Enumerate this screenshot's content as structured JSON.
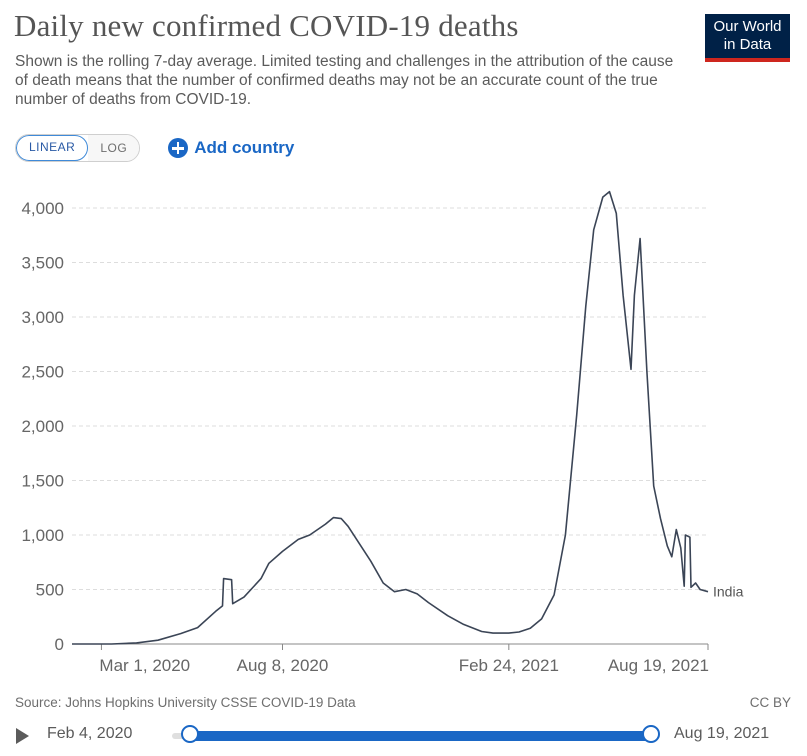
{
  "header": {
    "title": "Daily new confirmed COVID-19 deaths",
    "subtitle": "Shown is the rolling 7-day average. Limited testing and challenges in the attribution of the cause of death means that the number of confirmed deaths may not be an accurate count of the true number of deaths from COVID-19."
  },
  "logo": {
    "line1": "Our World",
    "line2": "in Data"
  },
  "controls": {
    "linear_label": "LINEAR",
    "log_label": "LOG",
    "add_country_label": "Add country",
    "add_icon": "plus-circle-icon"
  },
  "colors": {
    "line": "#3b4556",
    "grid": "#dddddd",
    "accent": "#1a67c5",
    "logo_bg": "#002147",
    "logo_bar": "#ce261e"
  },
  "chart_data": {
    "type": "line",
    "title": "Daily new confirmed COVID-19 deaths",
    "ylim": [
      0,
      4000
    ],
    "yticks": [
      0,
      500,
      1000,
      1500,
      2000,
      2500,
      3000,
      3500,
      4000
    ],
    "ytick_labels": [
      "0",
      "500",
      "1,000",
      "1,500",
      "2,000",
      "2,500",
      "3,000",
      "3,500",
      "4,000"
    ],
    "xlim": [
      "2020-02-04",
      "2021-08-19"
    ],
    "xticks": [
      "2020-03-01",
      "2020-08-08",
      "2021-02-24",
      "2021-08-19"
    ],
    "xtick_labels": [
      "Mar 1, 2020",
      "Aug 8, 2020",
      "Feb 24, 2021",
      "Aug 19, 2021"
    ],
    "grid": true,
    "series": [
      {
        "name": "India",
        "points": [
          [
            "2020-02-04",
            0
          ],
          [
            "2020-03-10",
            0
          ],
          [
            "2020-04-01",
            10
          ],
          [
            "2020-04-20",
            35
          ],
          [
            "2020-05-10",
            95
          ],
          [
            "2020-05-25",
            150
          ],
          [
            "2020-06-10",
            300
          ],
          [
            "2020-06-16",
            350
          ],
          [
            "2020-06-17",
            600
          ],
          [
            "2020-06-24",
            590
          ],
          [
            "2020-06-25",
            370
          ],
          [
            "2020-07-05",
            430
          ],
          [
            "2020-07-20",
            600
          ],
          [
            "2020-07-27",
            740
          ],
          [
            "2020-08-08",
            850
          ],
          [
            "2020-08-22",
            960
          ],
          [
            "2020-09-01",
            1000
          ],
          [
            "2020-09-15",
            1100
          ],
          [
            "2020-09-22",
            1160
          ],
          [
            "2020-09-29",
            1150
          ],
          [
            "2020-10-05",
            1080
          ],
          [
            "2020-10-15",
            920
          ],
          [
            "2020-10-25",
            760
          ],
          [
            "2020-11-05",
            560
          ],
          [
            "2020-11-15",
            480
          ],
          [
            "2020-11-25",
            500
          ],
          [
            "2020-12-05",
            460
          ],
          [
            "2020-12-15",
            380
          ],
          [
            "2021-01-01",
            260
          ],
          [
            "2021-01-15",
            180
          ],
          [
            "2021-01-31",
            115
          ],
          [
            "2021-02-10",
            100
          ],
          [
            "2021-02-24",
            100
          ],
          [
            "2021-03-05",
            110
          ],
          [
            "2021-03-15",
            145
          ],
          [
            "2021-03-25",
            230
          ],
          [
            "2021-04-05",
            450
          ],
          [
            "2021-04-15",
            1000
          ],
          [
            "2021-04-25",
            2100
          ],
          [
            "2021-05-03",
            3100
          ],
          [
            "2021-05-10",
            3800
          ],
          [
            "2021-05-18",
            4100
          ],
          [
            "2021-05-24",
            4150
          ],
          [
            "2021-05-30",
            3950
          ],
          [
            "2021-06-05",
            3200
          ],
          [
            "2021-06-12",
            2520
          ],
          [
            "2021-06-15",
            3200
          ],
          [
            "2021-06-20",
            3720
          ],
          [
            "2021-06-26",
            2500
          ],
          [
            "2021-07-02",
            1450
          ],
          [
            "2021-07-08",
            1150
          ],
          [
            "2021-07-14",
            900
          ],
          [
            "2021-07-18",
            800
          ],
          [
            "2021-07-22",
            1050
          ],
          [
            "2021-07-26",
            880
          ],
          [
            "2021-07-29",
            530
          ],
          [
            "2021-07-30",
            1000
          ],
          [
            "2021-08-03",
            980
          ],
          [
            "2021-08-04",
            520
          ],
          [
            "2021-08-08",
            560
          ],
          [
            "2021-08-12",
            500
          ],
          [
            "2021-08-19",
            480
          ]
        ]
      }
    ]
  },
  "footer": {
    "source": "Source: Johns Hopkins University CSSE COVID-19 Data",
    "license": "CC BY"
  },
  "timeline": {
    "start_label": "Feb 4, 2020",
    "end_label": "Aug 19, 2021",
    "play_icon": "play-icon"
  }
}
